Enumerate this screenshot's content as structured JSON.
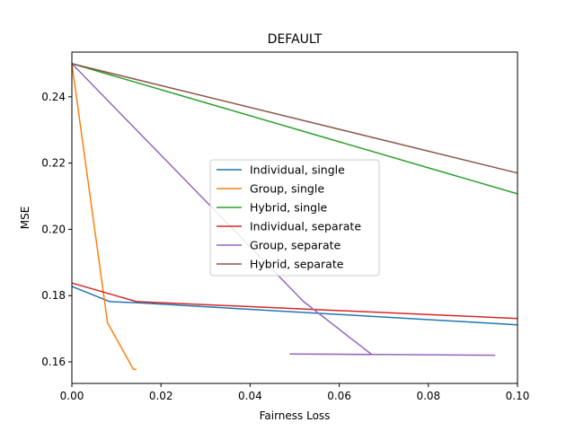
{
  "chart_data": {
    "type": "line",
    "title": "DEFAULT",
    "xlabel": "Fairness Loss",
    "ylabel": "MSE",
    "xlim": [
      0,
      0.1
    ],
    "ylim": [
      0.1535,
      0.2535
    ],
    "xticks": [
      0,
      0.02,
      0.04,
      0.06,
      0.08,
      0.1
    ],
    "xtick_labels": [
      "0.00",
      "0.02",
      "0.04",
      "0.06",
      "0.08",
      "0.10"
    ],
    "yticks": [
      0.16,
      0.18,
      0.2,
      0.22,
      0.24
    ],
    "ytick_labels": [
      "0.16",
      "0.18",
      "0.20",
      "0.22",
      "0.24"
    ],
    "grid": false,
    "legend_position": "center",
    "series": [
      {
        "name": "Individual, single",
        "color": "#1f77b4",
        "points": [
          [
            0,
            0.1828
          ],
          [
            0.0085,
            0.1782
          ],
          [
            0.015,
            0.1778
          ],
          [
            0.1,
            0.1712
          ]
        ]
      },
      {
        "name": "Group, single",
        "color": "#ff7f0e",
        "points": [
          [
            0,
            0.25
          ],
          [
            0.008,
            0.1718
          ],
          [
            0.0138,
            0.1578
          ],
          [
            0.0145,
            0.1577
          ]
        ]
      },
      {
        "name": "Hybrid, single",
        "color": "#2ca02c",
        "points": [
          [
            0,
            0.25
          ],
          [
            0.1,
            0.2107
          ]
        ]
      },
      {
        "name": "Individual, separate",
        "color": "#d62728",
        "points": [
          [
            0,
            0.1838
          ],
          [
            0.0145,
            0.1782
          ],
          [
            0.1,
            0.1731
          ]
        ]
      },
      {
        "name": "Group, separate",
        "color": "#9467bd",
        "points": [
          [
            0,
            0.25
          ],
          [
            0.052,
            0.1782
          ],
          [
            0.0673,
            0.1622
          ],
          [
            0.049,
            0.1624
          ],
          [
            0.095,
            0.162
          ]
        ]
      },
      {
        "name": "Hybrid, separate",
        "color": "#8c564b",
        "points": [
          [
            0,
            0.25
          ],
          [
            0.1,
            0.217
          ]
        ]
      }
    ]
  }
}
